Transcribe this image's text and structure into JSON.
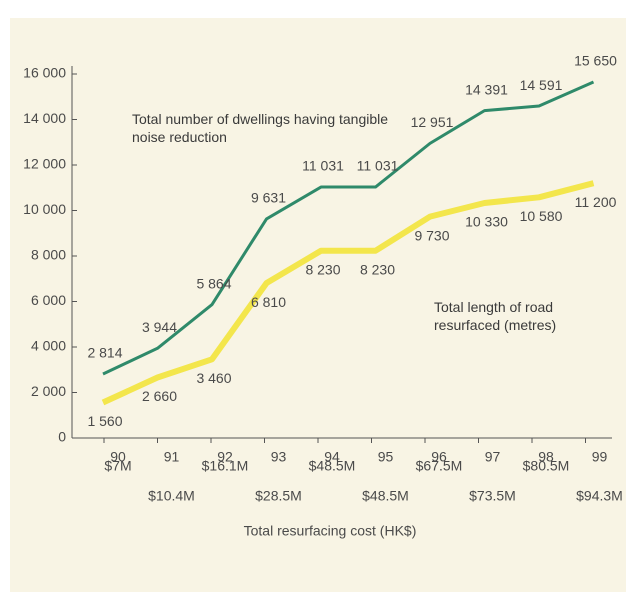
{
  "chart_data": {
    "type": "line",
    "categories": [
      "90",
      "91",
      "92",
      "93",
      "94",
      "95",
      "96",
      "97",
      "98",
      "99"
    ],
    "cost_labels": [
      "$7M",
      "$10.4M",
      "$16.1M",
      "$28.5M",
      "$48.5M",
      "$48.5M",
      "$67.5M",
      "$73.5M",
      "$80.5M",
      "$94.3M"
    ],
    "x_label": "Total resurfacing cost (HK$)",
    "series": [
      {
        "name": "Total number of dwellings having tangible noise reduction",
        "color": "#2f8a6a",
        "values": [
          2814,
          3944,
          5864,
          9631,
          11031,
          11031,
          12951,
          14391,
          14591,
          15650
        ],
        "value_labels": [
          "2 814",
          "3 944",
          "5 864",
          "9 631",
          "11 031",
          "11 031",
          "12 951",
          "14 391",
          "14 591",
          "15 650"
        ]
      },
      {
        "name": "Total length of road resurfaced (metres)",
        "color": "#f3e64c",
        "values": [
          1560,
          2660,
          3460,
          6810,
          8230,
          8230,
          9730,
          10330,
          10580,
          11200
        ],
        "value_labels": [
          "1 560",
          "2 660",
          "3 460",
          "6 810",
          "8 230",
          "8 230",
          "9 730",
          "10 330",
          "10 580",
          "11 200"
        ]
      }
    ],
    "ylim": [
      0,
      16000
    ],
    "yticks": [
      0,
      {
        "value": 2000,
        "label": "2 000"
      },
      {
        "value": 4000,
        "label": "4 000"
      },
      {
        "value": 6000,
        "label": "6 000"
      },
      {
        "value": 8000,
        "label": "8 000"
      },
      {
        "value": 10000,
        "label": "10 000"
      },
      {
        "value": 12000,
        "label": "12 000"
      },
      {
        "value": 14000,
        "label": "14 000"
      },
      {
        "value": 16000,
        "label": "16 000"
      }
    ]
  }
}
